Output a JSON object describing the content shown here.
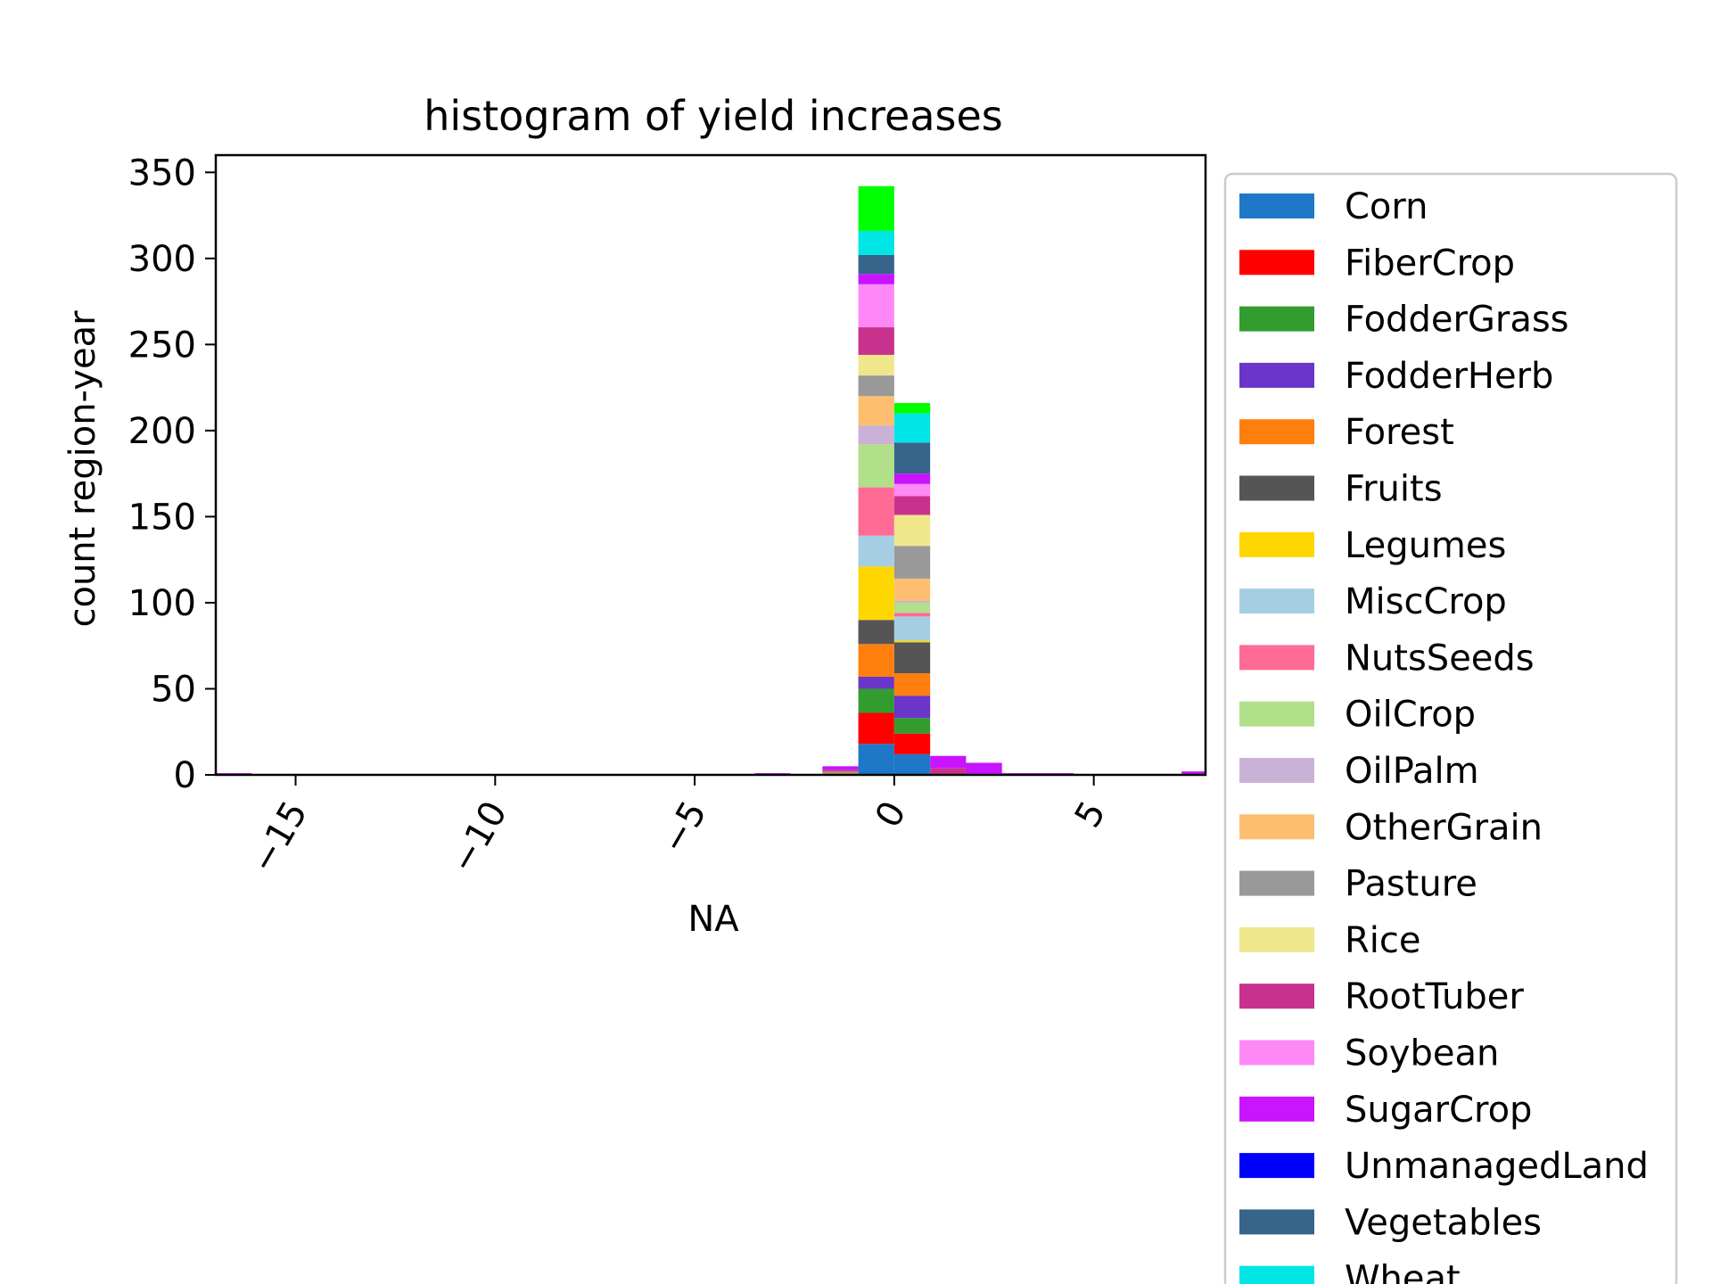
{
  "chart_data": {
    "type": "bar",
    "subtype": "stacked-histogram",
    "title": "histogram of yield increases",
    "xlabel": "NA",
    "ylabel": "count region-year",
    "xlim": [
      -17,
      7.8
    ],
    "ylim": [
      0,
      360
    ],
    "x_ticks": [
      -15,
      -10,
      -5,
      0,
      5
    ],
    "x_tick_labels": [
      "−15",
      "−10",
      "−5",
      "0",
      "5"
    ],
    "y_ticks": [
      0,
      50,
      100,
      150,
      200,
      250,
      300,
      350
    ],
    "y_tick_labels": [
      "0",
      "50",
      "100",
      "150",
      "200",
      "250",
      "300",
      "350"
    ],
    "grid": false,
    "legend_position": "outside-right",
    "bin_edges": [
      -17.0,
      -16.1,
      -15.2,
      -14.3,
      -13.4,
      -12.5,
      -11.6,
      -10.7,
      -9.8,
      -8.9,
      -8.0,
      -7.1,
      -6.2,
      -5.3,
      -4.4,
      -3.5,
      -2.6,
      -1.8,
      -0.9,
      0.0,
      0.9,
      1.8,
      2.7,
      3.6,
      4.5,
      5.4,
      6.3,
      7.2,
      8.1
    ],
    "series": [
      {
        "name": "Corn",
        "color": "#1f77c8",
        "bins": {
          "18": 18,
          "19": 12
        }
      },
      {
        "name": "FiberCrop",
        "color": "#ff0000",
        "bins": {
          "18": 18,
          "19": 12
        }
      },
      {
        "name": "FodderGrass",
        "color": "#339c2f",
        "bins": {
          "18": 14,
          "19": 9
        }
      },
      {
        "name": "FodderHerb",
        "color": "#6a35c8",
        "bins": {
          "18": 7,
          "19": 13
        }
      },
      {
        "name": "Forest",
        "color": "#ff7f0e",
        "bins": {
          "17": 1,
          "18": 19,
          "19": 13
        }
      },
      {
        "name": "Fruits",
        "color": "#555555",
        "bins": {
          "18": 14,
          "19": 18
        }
      },
      {
        "name": "Legumes",
        "color": "#ffd700",
        "bins": {
          "18": 31,
          "19": 1
        }
      },
      {
        "name": "MiscCrop",
        "color": "#a6cee3",
        "bins": {
          "18": 18,
          "19": 14
        }
      },
      {
        "name": "NutsSeeds",
        "color": "#ff6b95",
        "bins": {
          "18": 28,
          "19": 2
        }
      },
      {
        "name": "OilCrop",
        "color": "#b2df8a",
        "bins": {
          "18": 25,
          "19": 6
        }
      },
      {
        "name": "OilPalm",
        "color": "#cab2d6",
        "bins": {
          "18": 11,
          "19": 1
        }
      },
      {
        "name": "OtherGrain",
        "color": "#fdbf6f",
        "bins": {
          "18": 17,
          "19": 13
        }
      },
      {
        "name": "Pasture",
        "color": "#999999",
        "bins": {
          "17": 1,
          "18": 12,
          "19": 19
        }
      },
      {
        "name": "Rice",
        "color": "#f0e68c",
        "bins": {
          "18": 12,
          "19": 18
        }
      },
      {
        "name": "RootTuber",
        "color": "#c8328c",
        "bins": {
          "17": 1,
          "18": 16,
          "19": 11,
          "20": 4
        }
      },
      {
        "name": "Soybean",
        "color": "#ff88f7",
        "bins": {
          "18": 25,
          "19": 7
        }
      },
      {
        "name": "SugarCrop",
        "color": "#c814ff",
        "bins": {
          "0": 1,
          "15": 1,
          "17": 2,
          "18": 6,
          "19": 6,
          "20": 7,
          "21": 7,
          "22": 1,
          "23": 1,
          "27": 2
        }
      },
      {
        "name": "UnmanagedLand",
        "color": "#0000ff",
        "bins": {}
      },
      {
        "name": "Vegetables",
        "color": "#36648b",
        "bins": {
          "18": 11,
          "19": 18
        }
      },
      {
        "name": "Wheat",
        "color": "#00e5e5",
        "bins": {
          "18": 14,
          "19": 17
        }
      },
      {
        "name": "",
        "color": "#00ff00",
        "bins": {
          "18": 26,
          "19": 6
        }
      }
    ]
  }
}
